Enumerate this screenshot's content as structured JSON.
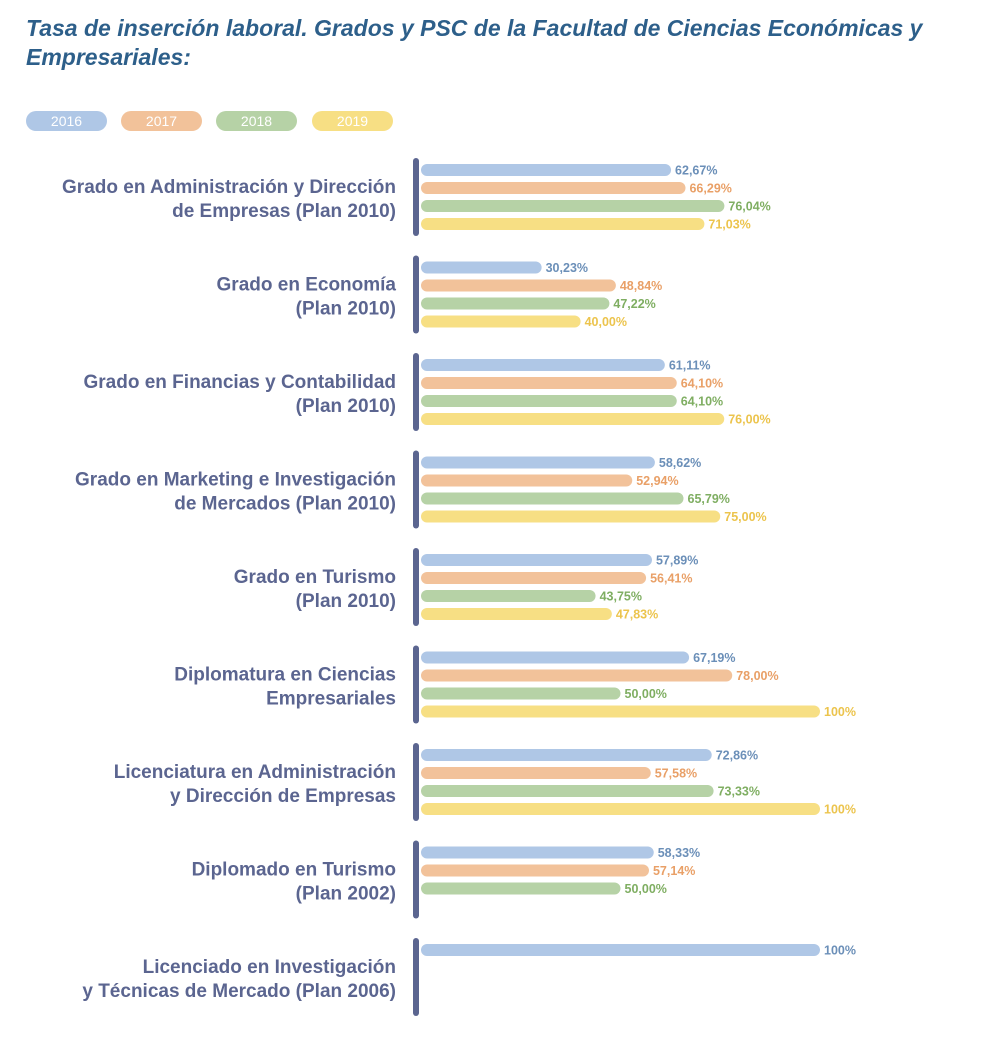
{
  "chart_data": {
    "type": "bar",
    "orientation": "horizontal",
    "title": "Tasa de inserción laboral. Grados y PSC de la Facultad de Ciencias Económicas y Empresariales:",
    "xlim": [
      0,
      100
    ],
    "grid": false,
    "legend_position": "top-left",
    "categories": [
      [
        "Grado en Administración y Dirección",
        "de Empresas (Plan 2010)"
      ],
      [
        "Grado en Economía",
        "(Plan 2010)"
      ],
      [
        "Grado en Financias y Contabilidad",
        "(Plan 2010)"
      ],
      [
        "Grado en Marketing e Investigación",
        "de Mercados (Plan 2010)"
      ],
      [
        "Grado en Turismo",
        "(Plan 2010)"
      ],
      [
        "Diplomatura en Ciencias",
        "Empresariales"
      ],
      [
        "Licenciatura en Administración",
        "y Dirección de Empresas"
      ],
      [
        "Diplomado en Turismo",
        "(Plan 2002)"
      ],
      [
        "Licenciado en Investigación",
        "y Técnicas de Mercado (Plan 2006)"
      ]
    ],
    "series": [
      {
        "name": "2016",
        "color": "#afc7e6",
        "label_color": "#6b8fb8",
        "values": [
          62.67,
          30.23,
          61.11,
          58.62,
          57.89,
          67.19,
          72.86,
          58.33,
          100
        ],
        "labels": [
          "62,67%",
          "30,23%",
          "61,11%",
          "58,62%",
          "57,89%",
          "67,19%",
          "72,86%",
          "58,33%",
          "100%"
        ]
      },
      {
        "name": "2017",
        "color": "#f2c29a",
        "label_color": "#e9a067",
        "values": [
          66.29,
          48.84,
          64.1,
          52.94,
          56.41,
          78.0,
          57.58,
          57.14,
          null
        ],
        "labels": [
          "66,29%",
          "48,84%",
          "64,10%",
          "52,94%",
          "56,41%",
          "78,00%",
          "57,58%",
          "57,14%",
          null
        ]
      },
      {
        "name": "2018",
        "color": "#b6d2a6",
        "label_color": "#7fae62",
        "values": [
          76.04,
          47.22,
          64.1,
          65.79,
          43.75,
          50.0,
          73.33,
          50.0,
          null
        ],
        "labels": [
          "76,04%",
          "47,22%",
          "64,10%",
          "65,79%",
          "43,75%",
          "50,00%",
          "73,33%",
          "50,00%",
          null
        ]
      },
      {
        "name": "2019",
        "color": "#f7df84",
        "label_color": "#ecc44d",
        "values": [
          71.03,
          40.0,
          76.0,
          75.0,
          47.83,
          100,
          100,
          null,
          null
        ],
        "labels": [
          "71,03%",
          "40,00%",
          "76,00%",
          "75,00%",
          "47,83%",
          "100%",
          "100%",
          null,
          null
        ]
      }
    ],
    "axis_color": "#5b6590"
  }
}
